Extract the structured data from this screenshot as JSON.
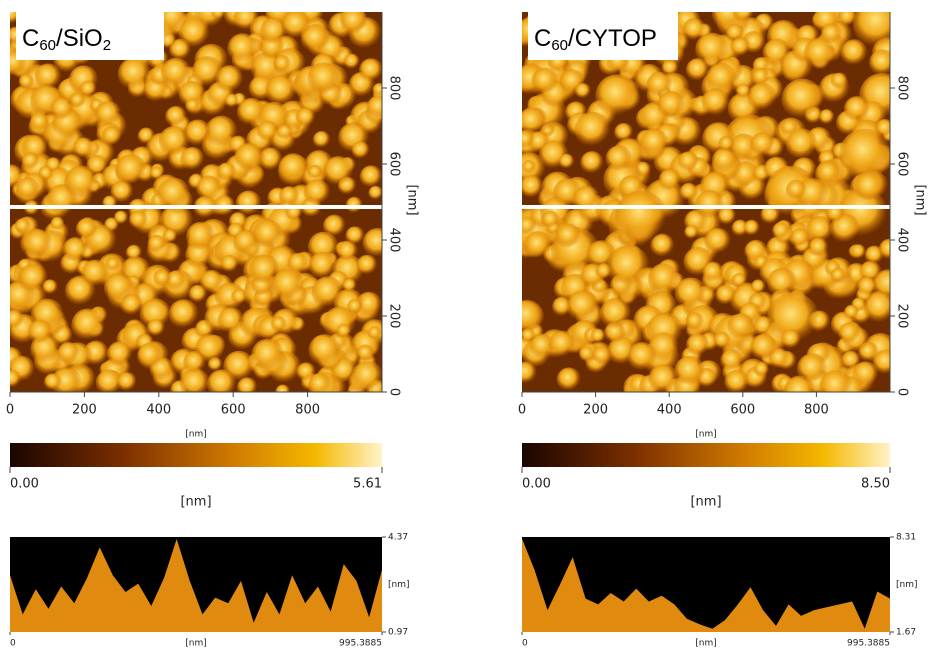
{
  "images": [
    {
      "label": [
        "C",
        "60",
        "/SiO",
        "2"
      ],
      "xlim": [
        0,
        1000
      ],
      "xticks": [
        0,
        200,
        400,
        600,
        800
      ],
      "xlabel": "[nm]",
      "ylim": [
        0,
        1000
      ],
      "yticks": [
        0,
        200,
        400,
        600,
        800
      ],
      "ylabel": "[nm]",
      "colorbar": {
        "range": [
          {
            "value": 0,
            "label": "0.00"
          },
          5.61
        ],
        "label": "[nm]"
      }
    },
    {
      "label": [
        "C",
        "60",
        "/CYTOP"
      ],
      "xlim": [
        0,
        1000
      ],
      "xticks": [
        0,
        200,
        400,
        600,
        800
      ],
      "xlabel": "[nm]",
      "ylim": [
        0,
        1000
      ],
      "yticks": [
        0,
        200,
        400,
        600,
        800
      ],
      "ylabel": "[nm]",
      "colorbar": {
        "range": [
          {
            "value": 0,
            "label": "0.00"
          },
          {
            "value": 8.5,
            "label": "8.50"
          }
        ],
        "label": "[nm]"
      }
    }
  ],
  "chart_data": [
    {
      "type": "area",
      "color": "#e08a10",
      "xlabel": "[nm]",
      "ylabel": "[nm]",
      "x": [
        0,
        34,
        69,
        103,
        137,
        172,
        206,
        240,
        275,
        309,
        343,
        378,
        412,
        446,
        481,
        515,
        549,
        584,
        618,
        652,
        687,
        721,
        755,
        790,
        824,
        858,
        893,
        927,
        961,
        995.3885
      ],
      "values": [
        3.0,
        1.6,
        2.5,
        1.8,
        2.6,
        2.0,
        2.9,
        4.0,
        3.0,
        2.4,
        2.7,
        1.9,
        2.9,
        4.3,
        2.8,
        1.6,
        2.2,
        2.0,
        2.8,
        1.3,
        2.4,
        1.6,
        3.0,
        2.0,
        2.6,
        1.7,
        3.4,
        2.8,
        1.5,
        3.2
      ],
      "xlim": [
        0,
        995.3885
      ],
      "xticks": [
        0,
        995.3885
      ],
      "ylim": [
        0.97,
        4.37
      ],
      "yticks": [
        0.97,
        4.37
      ]
    },
    {
      "type": "area",
      "color": "#e08a10",
      "xlabel": "[nm]",
      "ylabel": "[nm]",
      "x": [
        0,
        34,
        69,
        103,
        137,
        172,
        206,
        240,
        275,
        309,
        343,
        378,
        412,
        446,
        481,
        515,
        549,
        584,
        618,
        652,
        687,
        721,
        755,
        790,
        824,
        858,
        893,
        927,
        961,
        995.3885
      ],
      "values": [
        8.2,
        6.0,
        3.2,
        5.0,
        6.9,
        4.0,
        3.6,
        4.4,
        3.8,
        4.7,
        3.8,
        4.2,
        3.6,
        2.6,
        2.2,
        1.9,
        2.5,
        3.6,
        4.8,
        3.2,
        2.1,
        3.6,
        2.8,
        3.2,
        3.4,
        3.6,
        3.8,
        1.9,
        4.5,
        4.0
      ],
      "xlim": [
        0,
        995.3885
      ],
      "xticks": [
        0,
        995.3885
      ],
      "ylim": [
        1.67,
        8.31
      ],
      "yticks": [
        1.67,
        8.31
      ]
    }
  ]
}
